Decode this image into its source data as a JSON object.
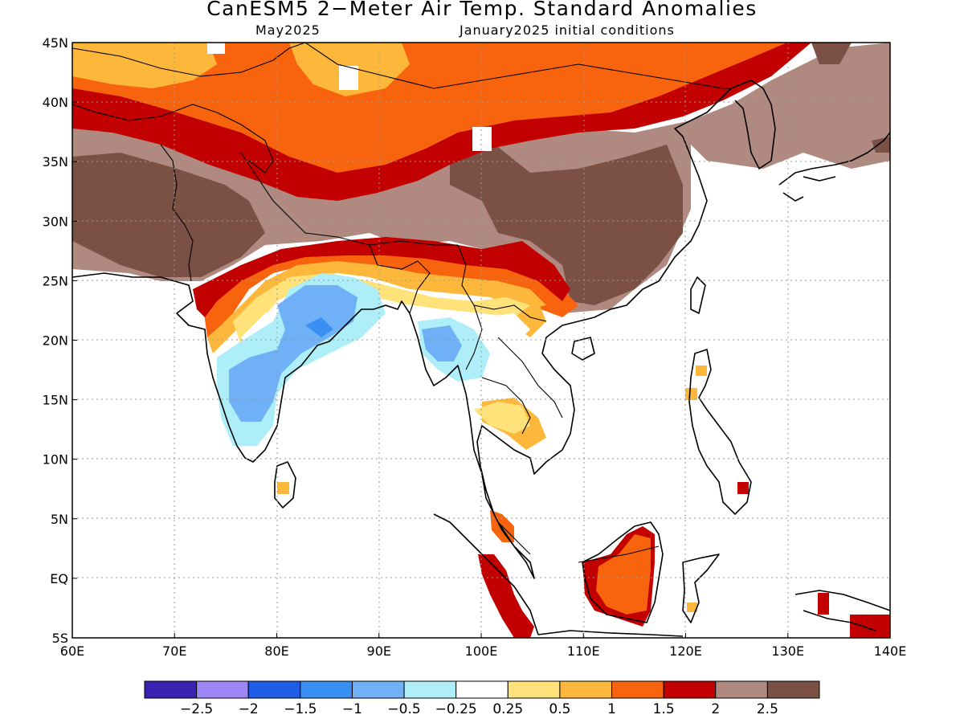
{
  "title": "CanESM5 2−Meter Air Temp. Standard Anomalies",
  "subtitle_left": "May2025",
  "subtitle_right": "January2025 initial conditions",
  "lat_labels": [
    "45N",
    "40N",
    "35N",
    "30N",
    "25N",
    "20N",
    "15N",
    "10N",
    "5N",
    "EQ",
    "5S"
  ],
  "lon_labels": [
    "60E",
    "70E",
    "80E",
    "90E",
    "100E",
    "110E",
    "120E",
    "130E",
    "140E"
  ],
  "colorbar": {
    "colors": [
      "#3a23b4",
      "#9c87f5",
      "#1f5ee6",
      "#3a8ff2",
      "#6fb0f7",
      "#aeeef9",
      "#ffffff",
      "#ffe27a",
      "#fdb83b",
      "#f8630e",
      "#c20000",
      "#b08a80",
      "#7a5144"
    ],
    "labels": [
      "−2.5",
      "−2",
      "−1.5",
      "−1",
      "−0.5",
      "−0.25",
      "0.25",
      "0.5",
      "1",
      "1.5",
      "2",
      "2.5"
    ]
  }
}
